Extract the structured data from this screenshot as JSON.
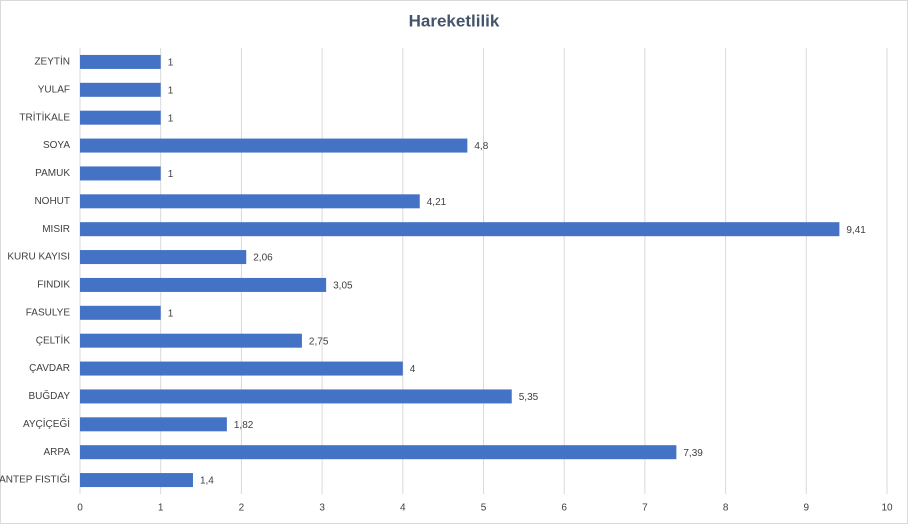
{
  "chart_data": {
    "type": "bar",
    "title": "Hareketlilik",
    "categories": [
      "ZEYTİN",
      "YULAF",
      "TRİTİKALE",
      "SOYA",
      "PAMUK",
      "NOHUT",
      "MISIR",
      "KURU KAYISI",
      "FINDIK",
      "FASULYE",
      "ÇELTİK",
      "ÇAVDAR",
      "BUĞDAY",
      "AYÇİÇEĞİ",
      "ARPA",
      "ANTEP FISTIĞI"
    ],
    "values": [
      1,
      1,
      1,
      4.8,
      1,
      4.21,
      9.41,
      2.06,
      3.05,
      1,
      2.75,
      4,
      5.35,
      1.82,
      7.39,
      1.4
    ],
    "value_labels": [
      "1",
      "1",
      "1",
      "4,8",
      "1",
      "4,21",
      "9,41",
      "2,06",
      "3,05",
      "1",
      "2,75",
      "4",
      "5,35",
      "1,82",
      "7,39",
      "1,4"
    ],
    "color": "#4472c4",
    "xlim": [
      0,
      10
    ],
    "xticks": [
      0,
      1,
      2,
      3,
      4,
      5,
      6,
      7,
      8,
      9,
      10
    ],
    "grid": true
  }
}
